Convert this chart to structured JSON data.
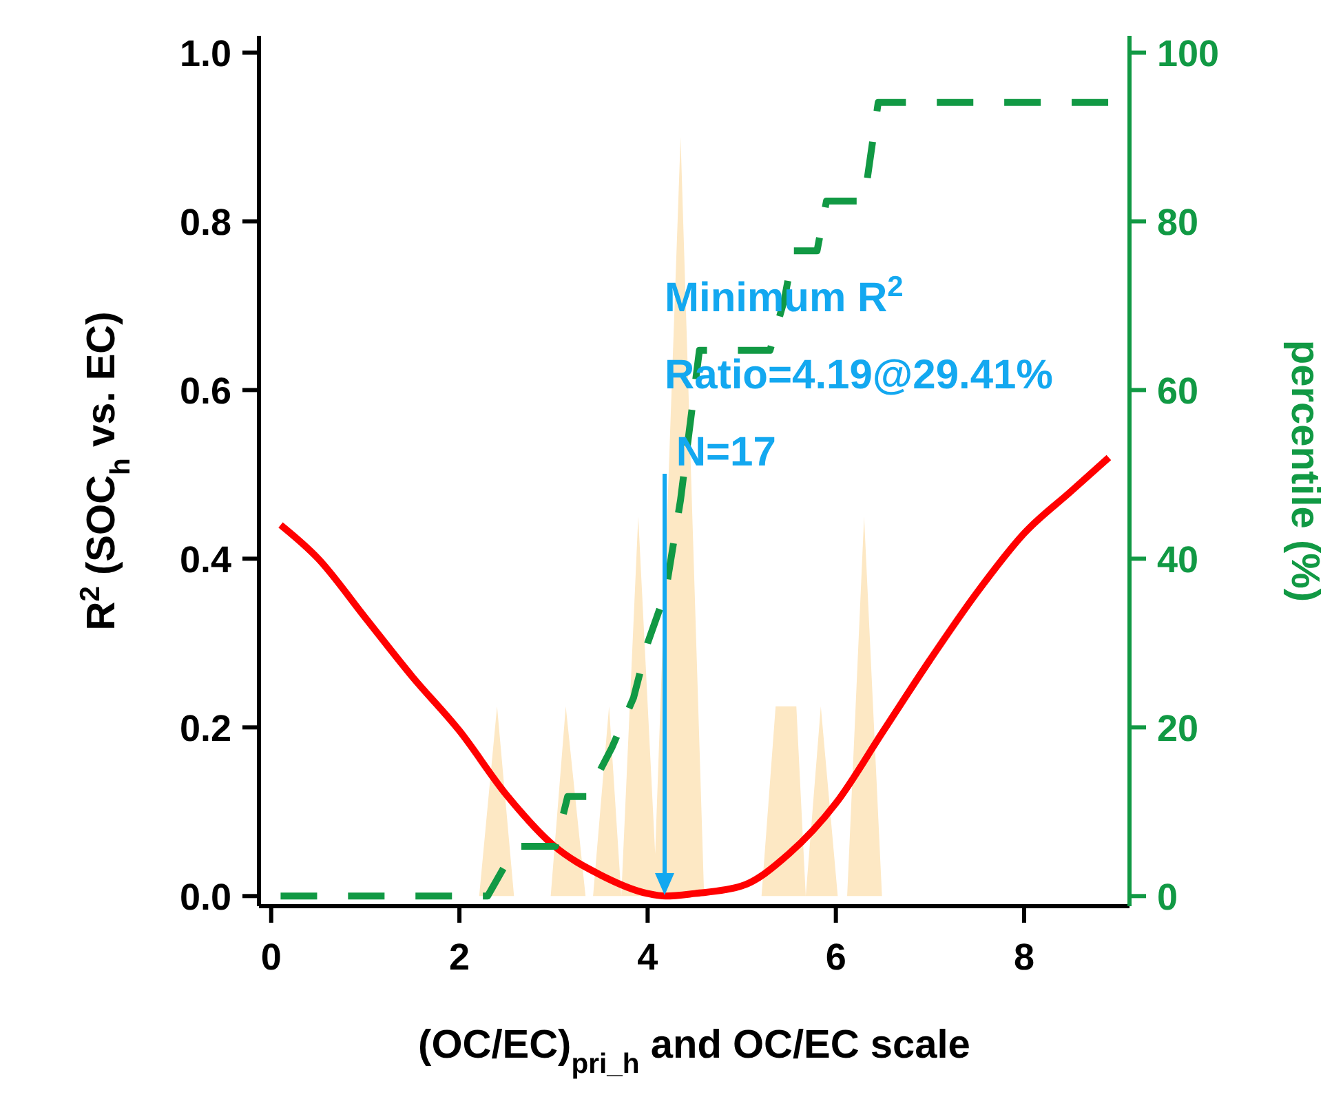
{
  "chart_data": {
    "type": "line",
    "xlabel": "(OC/EC)$_{pri_h}$ and OC/EC scale",
    "ylabel": "R$^{2}$ (SOC$_{h}$ vs. EC)",
    "y2label": "percentile (%)",
    "xlim": [
      -0.13,
      9.12
    ],
    "xticks": [
      0,
      2,
      4,
      6,
      8
    ],
    "ylim": [
      -0.012,
      1.02
    ],
    "yticks": [
      {
        "value": 0,
        "label": "0.0"
      },
      {
        "value": 0.2,
        "label": "0.2"
      },
      {
        "value": 0.4,
        "label": "0.4"
      },
      {
        "value": 0.6,
        "label": "0.6"
      },
      {
        "value": 0.8,
        "label": "0.8"
      },
      {
        "value": 1,
        "label": "1.0"
      }
    ],
    "y2lim": [
      -1.2,
      102
    ],
    "y2ticks": [
      0,
      20,
      40,
      60,
      80,
      100
    ],
    "grid": false,
    "series": [
      {
        "type": "area",
        "color": "#fde8c4",
        "x": [
          0.1,
          2.21,
          2.4,
          2.58,
          2.97,
          3.13,
          3.34,
          3.42,
          3.59,
          3.72,
          3.9,
          4.08,
          4.35,
          4.6,
          5.21,
          5.36,
          5.58,
          5.68,
          5.84,
          6.02,
          6.12,
          6.3,
          6.49,
          8.84
        ],
        "values": [
          0,
          0,
          0.225,
          0,
          0,
          0.225,
          0,
          0,
          0.225,
          0,
          0.45,
          0.05,
          0.9,
          0,
          0,
          0.225,
          0.225,
          0,
          0.225,
          0,
          0,
          0.45,
          0,
          0
        ]
      },
      {
        "color": "#ff0000",
        "x": [
          0.1,
          0.5,
          1,
          1.5,
          2,
          2.5,
          3,
          3.5,
          4,
          4.19,
          4.5,
          5,
          5.5,
          6,
          6.5,
          7,
          7.5,
          8,
          8.5,
          8.9
        ],
        "values": [
          0.44,
          0.4,
          0.33,
          0.26,
          0.196,
          0.12,
          0.06,
          0.025,
          0.003,
          0,
          0.003,
          0.012,
          0.05,
          0.11,
          0.195,
          0.28,
          0.36,
          0.43,
          0.48,
          0.52
        ]
      },
      {
        "axis": "y2",
        "line_style": "dashed",
        "color": "#119944",
        "x": [
          0.1,
          2.3,
          2.6,
          3.02,
          3.15,
          3.35,
          3.62,
          3.85,
          4.0,
          4.19,
          4.35,
          4.55,
          5.3,
          5.45,
          5.55,
          5.8,
          5.9,
          6.3,
          6.45,
          8.9
        ],
        "values": [
          0,
          0,
          5.9,
          5.9,
          11.8,
          11.8,
          17.6,
          23.5,
          30,
          36,
          47,
          64.7,
          64.7,
          70.6,
          76.5,
          76.5,
          82.4,
          82.4,
          94.1,
          94.1
        ]
      }
    ],
    "annotations": [
      "Minimum R$^{2}$",
      "Ratio=4.19@29.41%",
      " N=17"
    ]
  }
}
